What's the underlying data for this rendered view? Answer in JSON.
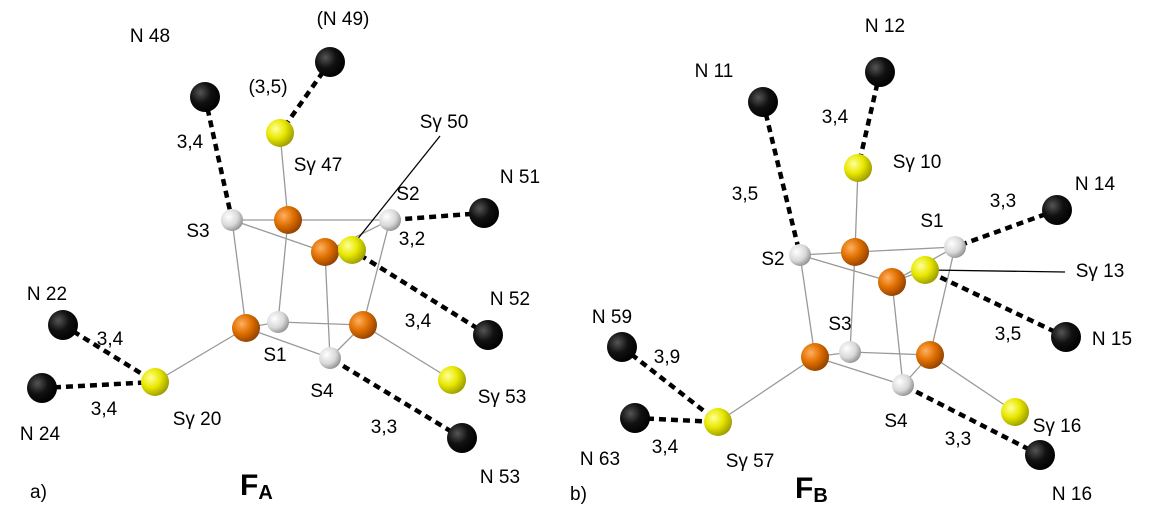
{
  "panels": [
    {
      "label": "a)",
      "title": "F",
      "title_sub": "A",
      "labels": [
        "N 48",
        "(N 49)",
        "(3,5)",
        "Sγ 47",
        "S3",
        "Sγ 50",
        "S2",
        "N 51",
        "N 52",
        "S1",
        "S4",
        "Sγ 53",
        "N 53",
        "N 22",
        "N 24",
        "Sγ 20"
      ],
      "distances": [
        "3,4",
        "3,2",
        "3,4",
        "3,3",
        "3,4",
        "3,4"
      ]
    },
    {
      "label": "b)",
      "title": "F",
      "title_sub": "B",
      "labels": [
        "N 11",
        "N 12",
        "Sγ 10",
        "S2",
        "S1",
        "N 14",
        "Sγ 13",
        "N 15",
        "S3",
        "S4",
        "Sγ 16",
        "N 16",
        "N 59",
        "N 63",
        "Sγ 57"
      ],
      "distances": [
        "3,4",
        "3,5",
        "3,3",
        "3,5",
        "3,3",
        "3,9",
        "3,4"
      ]
    }
  ]
}
